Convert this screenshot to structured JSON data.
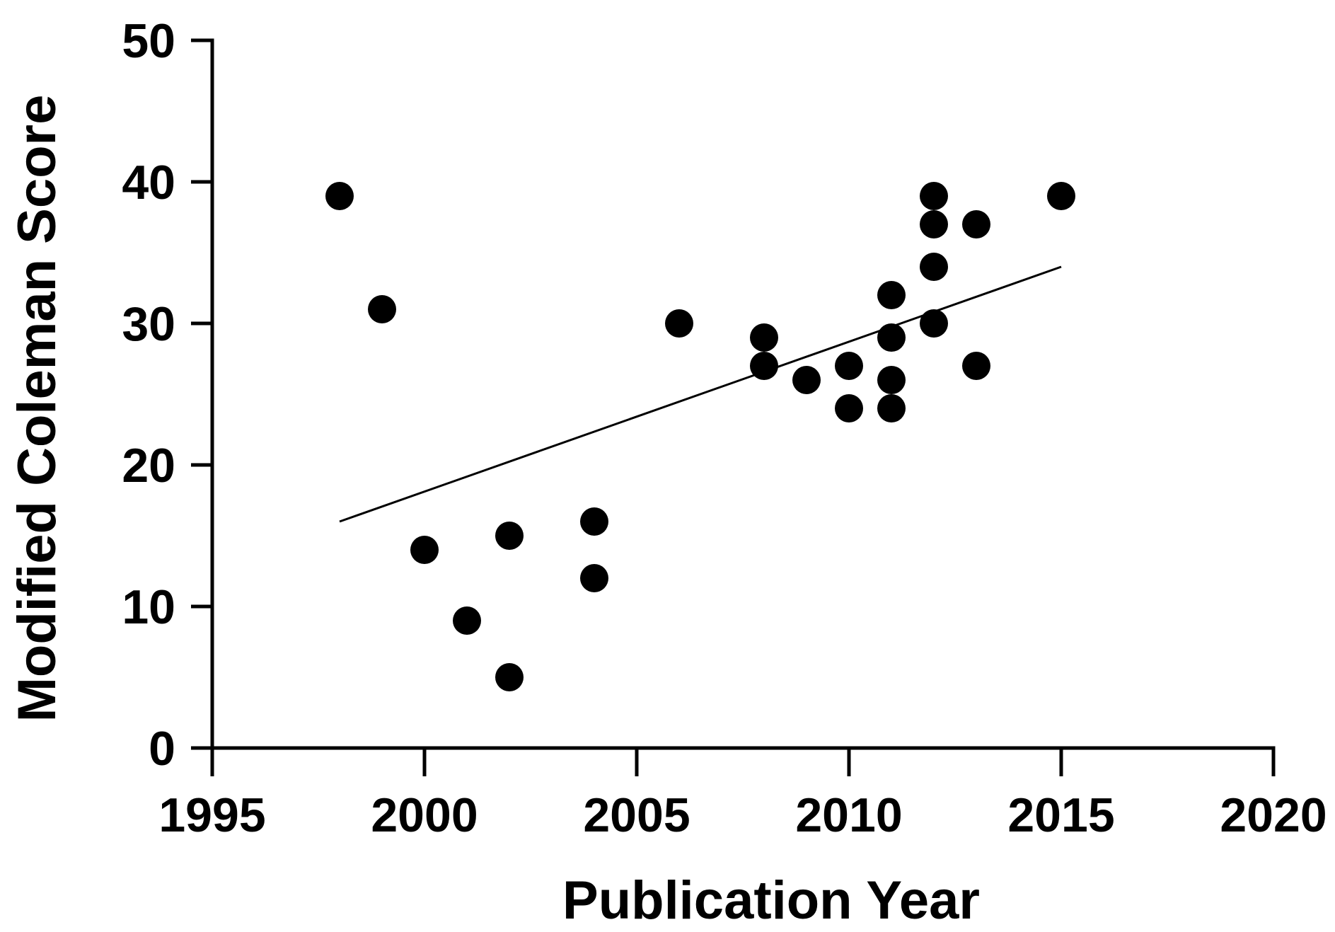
{
  "chart_data": {
    "type": "scatter",
    "title": "",
    "xlabel": "Publication Year",
    "ylabel": "Modified Coleman Score",
    "xlim": [
      1995,
      2020
    ],
    "ylim": [
      0,
      50
    ],
    "xticks": [
      1995,
      2000,
      2005,
      2010,
      2015,
      2020
    ],
    "yticks": [
      0,
      10,
      20,
      30,
      40,
      50
    ],
    "grid": false,
    "legend": "none",
    "point_color": "#000000",
    "points": [
      {
        "x": 1998,
        "y": 39
      },
      {
        "x": 1999,
        "y": 31
      },
      {
        "x": 2000,
        "y": 14
      },
      {
        "x": 2001,
        "y": 9
      },
      {
        "x": 2002,
        "y": 15
      },
      {
        "x": 2002,
        "y": 5
      },
      {
        "x": 2004,
        "y": 16
      },
      {
        "x": 2004,
        "y": 12
      },
      {
        "x": 2006,
        "y": 30
      },
      {
        "x": 2008,
        "y": 29
      },
      {
        "x": 2008,
        "y": 27
      },
      {
        "x": 2009,
        "y": 26
      },
      {
        "x": 2010,
        "y": 27
      },
      {
        "x": 2010,
        "y": 24
      },
      {
        "x": 2011,
        "y": 32
      },
      {
        "x": 2011,
        "y": 29
      },
      {
        "x": 2011,
        "y": 26
      },
      {
        "x": 2011,
        "y": 24
      },
      {
        "x": 2012,
        "y": 39
      },
      {
        "x": 2012,
        "y": 37
      },
      {
        "x": 2012,
        "y": 34
      },
      {
        "x": 2012,
        "y": 30
      },
      {
        "x": 2013,
        "y": 37
      },
      {
        "x": 2013,
        "y": 27
      },
      {
        "x": 2015,
        "y": 39
      }
    ],
    "trendline": {
      "x": [
        1998,
        2015
      ],
      "y": [
        16,
        34
      ]
    }
  }
}
